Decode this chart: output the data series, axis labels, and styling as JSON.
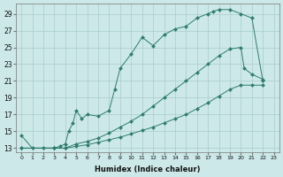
{
  "background_color": "#cce8e8",
  "grid_color": "#aacccc",
  "line_color": "#2e7d6e",
  "marker_color": "#2e7d6e",
  "xlabel": "Humidex (Indice chaleur)",
  "ylabel_ticks": [
    13,
    15,
    17,
    19,
    21,
    23,
    25,
    27,
    29
  ],
  "xlabel_ticks": [
    0,
    1,
    2,
    3,
    4,
    5,
    6,
    7,
    8,
    9,
    10,
    11,
    12,
    13,
    14,
    15,
    16,
    17,
    18,
    19,
    20,
    21,
    22,
    23
  ],
  "xlim": [
    -0.5,
    23.5
  ],
  "ylim": [
    12.5,
    30.2
  ],
  "series": [
    {
      "x": [
        0,
        1,
        2,
        3,
        3.5,
        4,
        4.3,
        4.7,
        5,
        5.5,
        6,
        7,
        8,
        8.5,
        9,
        10,
        11,
        12,
        13,
        14,
        15,
        16,
        17,
        17.5,
        18,
        19,
        20,
        21,
        22
      ],
      "y": [
        14.5,
        13,
        13,
        13,
        13.2,
        13.5,
        15,
        16,
        17.5,
        16.5,
        17,
        16.8,
        17.5,
        20,
        22.5,
        24.2,
        26.2,
        25.2,
        26.5,
        27.2,
        27.5,
        28.5,
        29,
        29.3,
        29.5,
        29.5,
        29,
        28.5,
        21
      ],
      "marker": "D",
      "markersize": 2.0
    },
    {
      "x": [
        0,
        3,
        4,
        5,
        6,
        7,
        8,
        9,
        10,
        11,
        12,
        13,
        14,
        15,
        16,
        17,
        18,
        19,
        20,
        20.3,
        21,
        22
      ],
      "y": [
        13,
        13,
        13,
        13.5,
        13.8,
        14.2,
        14.8,
        15.5,
        16.2,
        17,
        18,
        19,
        20,
        21,
        22,
        23,
        24,
        24.8,
        25,
        22.5,
        21.8,
        21.2
      ],
      "marker": "D",
      "markersize": 2.0
    },
    {
      "x": [
        0,
        3,
        4,
        5,
        6,
        7,
        8,
        9,
        10,
        11,
        12,
        13,
        14,
        15,
        16,
        17,
        18,
        19,
        20,
        21,
        22
      ],
      "y": [
        13,
        13,
        13,
        13.2,
        13.4,
        13.7,
        14,
        14.3,
        14.7,
        15.1,
        15.5,
        16,
        16.5,
        17,
        17.7,
        18.4,
        19.2,
        20,
        20.5,
        20.5,
        20.5
      ],
      "marker": "D",
      "markersize": 2.0
    }
  ]
}
